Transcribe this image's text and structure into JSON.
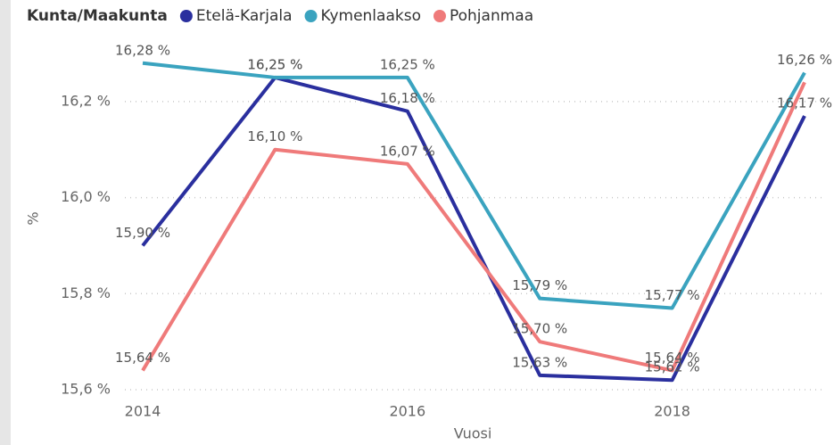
{
  "chart_data": {
    "type": "line",
    "legend_title": "Kunta/Maakunta",
    "x_label": "Vuosi",
    "y_label": "%",
    "x": [
      2014,
      2015,
      2016,
      2017,
      2018,
      2019
    ],
    "xlim": [
      2014,
      2019
    ],
    "xticks": [
      2014,
      2016,
      2018
    ],
    "ylim": [
      15.6,
      16.3
    ],
    "yticks": [
      {
        "value": 15.6,
        "label": "15,6 %"
      },
      {
        "value": 15.8,
        "label": "15,8 %"
      },
      {
        "value": 16.0,
        "label": "16,0 %"
      },
      {
        "value": 16.2,
        "label": "16,2 %"
      }
    ],
    "grid": true,
    "series": [
      {
        "name": "Etelä-Karjala",
        "color": "#2a2f9e",
        "values": [
          15.9,
          16.25,
          16.18,
          15.63,
          15.62,
          16.17
        ],
        "value_labels": [
          "15,90 %",
          "16,25 %",
          "16,18 %",
          "15,63 %",
          "15,62 %",
          "16,17 %"
        ]
      },
      {
        "name": "Kymenlaakso",
        "color": "#3aa3bf",
        "values": [
          16.28,
          16.25,
          16.25,
          15.79,
          15.77,
          16.26
        ],
        "value_labels": [
          "16,28 %",
          "16,25 %",
          "16,25 %",
          "15,79 %",
          "15,77 %",
          "16,26 %"
        ]
      },
      {
        "name": "Pohjanmaa",
        "color": "#ef7a7a",
        "values": [
          15.64,
          16.1,
          16.07,
          15.7,
          15.64,
          16.24
        ],
        "value_labels": [
          "15,64 %",
          "16,10 %",
          "16,07 %",
          "15,70 %",
          "15,64 %",
          null
        ]
      }
    ]
  }
}
